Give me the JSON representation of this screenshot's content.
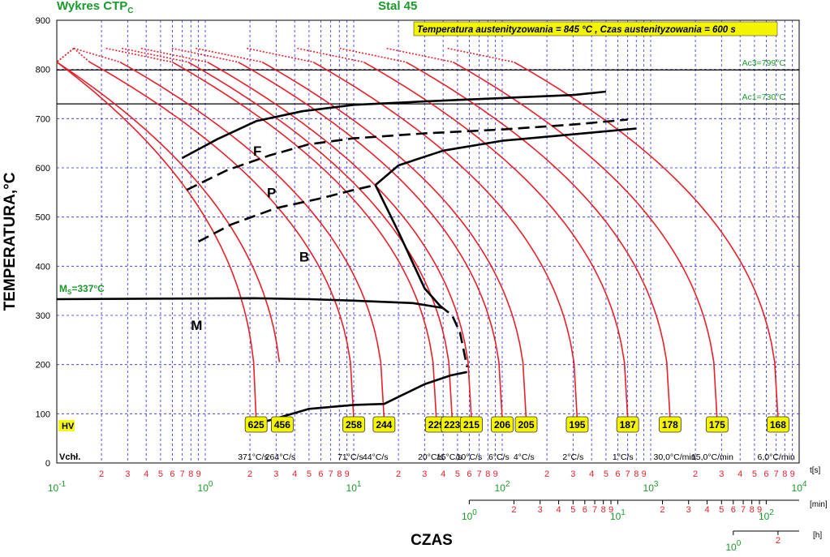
{
  "title": "Wykres CTP",
  "title_sub": "C",
  "steel": "Stal 45",
  "conditions": "Temperatura austenityzowania = 845 °C , Czas austenityzowania = 600 s",
  "ylabel": "TEMPERATURA,°C",
  "xlabel": "CZAS",
  "colors": {
    "curve": "#e8202a",
    "green": "#1a9a2a",
    "grid": "#2a2ae0",
    "badge": "#f4f400",
    "black": "#000000"
  },
  "chart_data": {
    "type": "line",
    "x_scale": "log",
    "xlim": [
      0.1,
      10000
    ],
    "ylim": [
      0,
      900
    ],
    "yticks": [
      0,
      100,
      200,
      300,
      400,
      500,
      600,
      700,
      800,
      900
    ],
    "x_unit_s": "t[s]",
    "x_unit_min": "[min]",
    "x_unit_h": "[h]",
    "ac3": {
      "label": "Ac3=799°C",
      "value": 799
    },
    "ac1": {
      "label": "Ac1=730°C",
      "value": 730
    },
    "ms": {
      "label": "M",
      "sub": "S",
      "rest": "=337°C",
      "value": 337
    },
    "regions": [
      {
        "label": "F",
        "x": 2.1,
        "y": 625
      },
      {
        "label": "P",
        "x": 2.6,
        "y": 540
      },
      {
        "label": "B",
        "x": 4.3,
        "y": 410
      },
      {
        "label": "M",
        "x": 0.8,
        "y": 270
      }
    ],
    "hv_label": "HV",
    "vchl_label": "Vchł.",
    "cooling_rates": [
      "371°C/s",
      "264°C/s",
      "71°C/s",
      "44°C/s",
      "20°C/s",
      "15°C/s",
      "10°C/s",
      "6°C/s",
      "4°C/s",
      "2°C/s",
      "1°C/s",
      "30,0°C/min",
      "15,0°C/min",
      "6,0°C/min"
    ],
    "hardness": [
      {
        "label": "625",
        "x_end": 2.2
      },
      {
        "label": "456",
        "x_end": 3.3
      },
      {
        "label": "258",
        "x_end": 10
      },
      {
        "label": "244",
        "x_end": 16
      },
      {
        "label": "229",
        "x_end": 36
      },
      {
        "label": "223",
        "x_end": 46
      },
      {
        "label": "215",
        "x_end": 62
      },
      {
        "label": "206",
        "x_end": 100
      },
      {
        "label": "205",
        "x_end": 145
      },
      {
        "label": "195",
        "x_end": 320
      },
      {
        "label": "187",
        "x_end": 700
      },
      {
        "label": "178",
        "x_end": 1350
      },
      {
        "label": "175",
        "x_end": 2800
      },
      {
        "label": "168",
        "x_end": 7200
      }
    ],
    "transformation_lines": [
      {
        "name": "ferrite start",
        "style": "solid",
        "points": [
          [
            0.7,
            620
          ],
          [
            1.2,
            658
          ],
          [
            2.2,
            695
          ],
          [
            4.5,
            715
          ],
          [
            10,
            728
          ],
          [
            30,
            735
          ],
          [
            100,
            742
          ],
          [
            300,
            748
          ],
          [
            500,
            755
          ]
        ]
      },
      {
        "name": "pearlite start",
        "style": "dashed",
        "points": [
          [
            0.75,
            555
          ],
          [
            1.4,
            595
          ],
          [
            2.7,
            625
          ],
          [
            5,
            648
          ],
          [
            10,
            660
          ],
          [
            30,
            670
          ],
          [
            100,
            678
          ],
          [
            300,
            688
          ],
          [
            700,
            698
          ]
        ]
      },
      {
        "name": "bainite start",
        "style": "dashed",
        "points": [
          [
            0.9,
            450
          ],
          [
            1.5,
            485
          ],
          [
            3,
            518
          ],
          [
            6,
            538
          ],
          [
            10,
            555
          ],
          [
            14,
            565
          ]
        ]
      },
      {
        "name": "pearlite finish",
        "style": "solid",
        "points": [
          [
            14,
            565
          ],
          [
            20,
            605
          ],
          [
            40,
            635
          ],
          [
            100,
            655
          ],
          [
            300,
            668
          ],
          [
            800,
            680
          ]
        ]
      },
      {
        "name": "martensite start",
        "style": "solid",
        "points": [
          [
            0.1,
            333
          ],
          [
            2.1,
            335
          ],
          [
            5,
            333
          ],
          [
            10,
            330
          ],
          [
            25,
            325
          ],
          [
            40,
            315
          ]
        ]
      },
      {
        "name": "bainite finish",
        "style": "solid",
        "points": [
          [
            14,
            565
          ],
          [
            20,
            470
          ],
          [
            30,
            355
          ],
          [
            38,
            320
          ]
        ]
      },
      {
        "name": "bainite finish dashed",
        "style": "dashed",
        "points": [
          [
            38,
            320
          ],
          [
            46,
            300
          ],
          [
            52,
            265
          ],
          [
            58,
            195
          ]
        ]
      },
      {
        "name": "transformation end",
        "style": "solid",
        "points": [
          [
            2.6,
            85
          ],
          [
            5,
            110
          ],
          [
            10,
            118
          ],
          [
            16,
            120
          ],
          [
            30,
            160
          ],
          [
            45,
            178
          ],
          [
            58,
            185
          ]
        ]
      }
    ]
  }
}
